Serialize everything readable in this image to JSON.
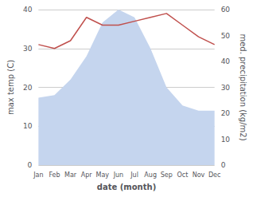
{
  "chart_data": {
    "type": "line",
    "xlabel": "date (month)",
    "ylabel": "max temp (C)",
    "y2label": "med. precipitation (kg/m2)",
    "categories": [
      "Jan",
      "Feb",
      "Mar",
      "Apr",
      "May",
      "Jun",
      "Jul",
      "Aug",
      "Sep",
      "Oct",
      "Nov",
      "Dec"
    ],
    "series": [
      {
        "type": "area",
        "axis": "y2",
        "color": "#c5d5ee",
        "values": [
          26,
          27,
          33,
          42,
          55,
          60,
          57,
          45,
          30,
          23,
          21,
          21
        ]
      },
      {
        "type": "line",
        "color": "#c0504d",
        "values": [
          31,
          30,
          32,
          38,
          36,
          36,
          37,
          38,
          39,
          36,
          33,
          31
        ]
      }
    ],
    "ylim": [
      0,
      40
    ],
    "yticks": [
      0,
      10,
      20,
      30,
      40
    ],
    "y2lim": [
      0,
      60
    ],
    "y2ticks": [
      0,
      10,
      20,
      30,
      40,
      50,
      60
    ],
    "grid": true
  }
}
